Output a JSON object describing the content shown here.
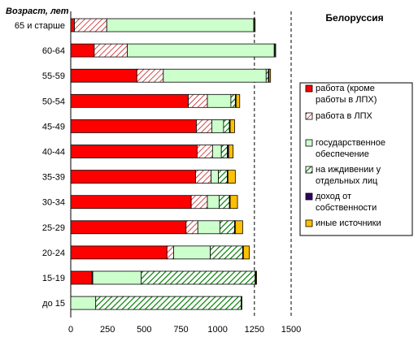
{
  "chart_data": {
    "type": "bar",
    "orientation": "horizontal",
    "stacked": true,
    "title": "Белоруссия",
    "ylabel": "Возраст, лет",
    "xlabel": "",
    "xlim": [
      0,
      1500
    ],
    "xticks": [
      0,
      250,
      500,
      750,
      1000,
      1250,
      1500
    ],
    "grid": false,
    "legend_position": "right",
    "categories": [
      "65 и старше",
      "60-64",
      "55-59",
      "50-54",
      "45-49",
      "40-44",
      "35-39",
      "30-34",
      "25-29",
      "20-24",
      "15-19",
      "до 15"
    ],
    "series": [
      {
        "name": "работа (кроме работы в ЛПХ)",
        "color": "#ff0000",
        "pattern": "solid",
        "values": [
          25,
          160,
          450,
          800,
          855,
          860,
          850,
          820,
          785,
          655,
          145,
          0
        ]
      },
      {
        "name": "работа в ЛПХ",
        "color": "#ffffff",
        "pattern": "red-hatch",
        "values": [
          220,
          225,
          180,
          130,
          105,
          105,
          105,
          110,
          80,
          45,
          5,
          0
        ]
      },
      {
        "name": "государственное обеспечение",
        "color": "#ccffcc",
        "pattern": "solid",
        "values": [
          1000,
          1000,
          700,
          160,
          80,
          60,
          50,
          80,
          150,
          250,
          330,
          170
        ]
      },
      {
        "name": "на иждивении у отдельных лиц",
        "color": "#008000",
        "pattern": "green-hatch",
        "values": [
          5,
          5,
          15,
          30,
          40,
          40,
          60,
          70,
          100,
          220,
          775,
          990
        ]
      },
      {
        "name": "доход от собственности",
        "color": "#330066",
        "pattern": "solid",
        "values": [
          0,
          0,
          5,
          5,
          5,
          10,
          5,
          5,
          5,
          5,
          5,
          0
        ]
      },
      {
        "name": "иные источники",
        "color": "#ffc000",
        "pattern": "solid",
        "values": [
          5,
          5,
          10,
          25,
          30,
          30,
          50,
          50,
          50,
          40,
          5,
          5
        ]
      }
    ]
  }
}
